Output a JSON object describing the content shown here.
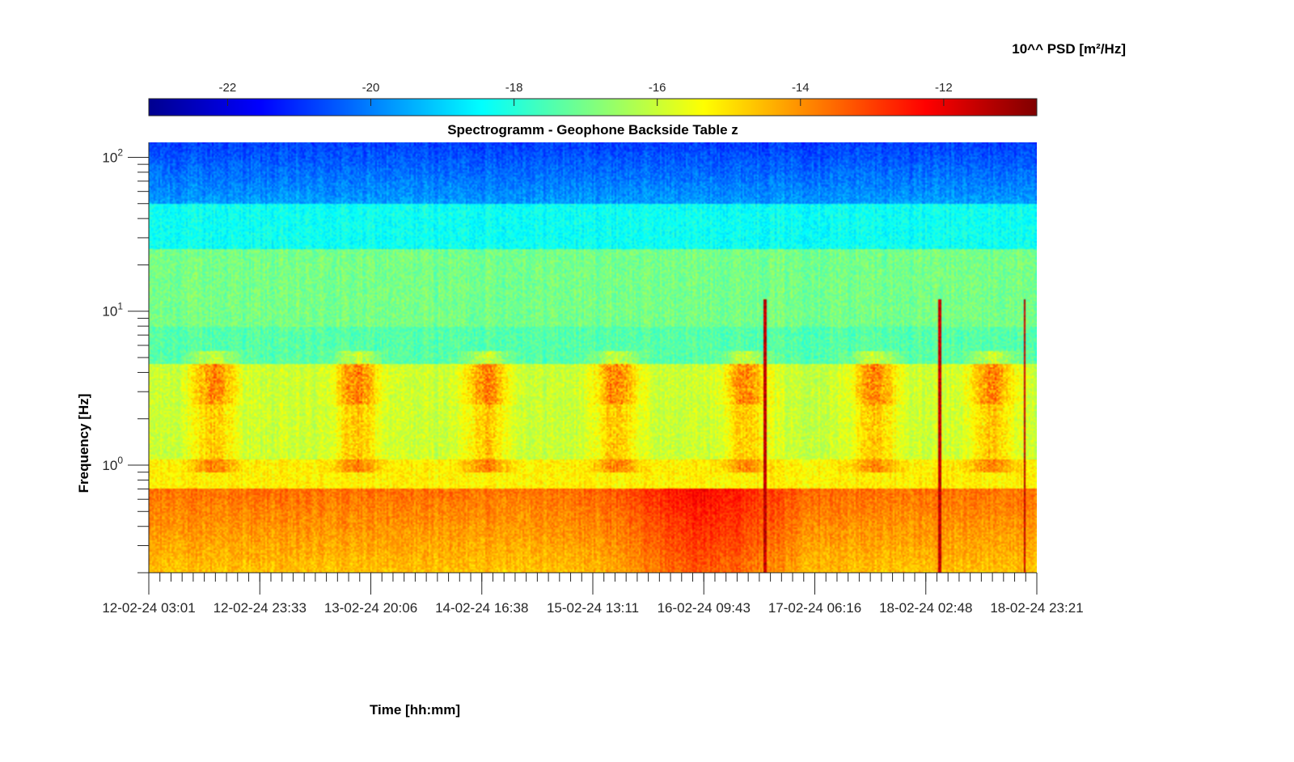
{
  "chart_data": {
    "type": "heatmap",
    "title": "Spectrogramm - Geophone Backside Table z",
    "xlabel": "Time [hh:mm]",
    "ylabel": "Frequency [Hz]",
    "y_scale": "log",
    "ylim": [
      0.2,
      125
    ],
    "x_ticks": [
      "12-02-24 03:01",
      "12-02-24 23:33",
      "13-02-24 20:06",
      "14-02-24 16:38",
      "15-02-24 13:11",
      "16-02-24 09:43",
      "17-02-24 06:16",
      "18-02-24 02:48",
      "18-02-24 23:21"
    ],
    "y_ticks": [
      {
        "base": "10",
        "exp": "0",
        "value": 1
      },
      {
        "base": "10",
        "exp": "1",
        "value": 10
      },
      {
        "base": "10",
        "exp": "2",
        "value": 100
      }
    ],
    "colorbar": {
      "label": "10^^ PSD [m²/Hz]",
      "colormap": "jet",
      "range": [
        -23.1,
        -10.7
      ],
      "ticks": [
        -22,
        -20,
        -18,
        -16,
        -14,
        -12
      ],
      "tick_labels": [
        "-22",
        "-20",
        "-18",
        "-16",
        "-14",
        "-12"
      ],
      "position": "top"
    },
    "grid": false,
    "features": [
      {
        "kind": "daytime-activity",
        "band_hz": [
          1,
          5
        ],
        "center_days": [
          0.5,
          1.6,
          2.6,
          3.6,
          4.6,
          5.6,
          6.5
        ],
        "level": -14
      },
      {
        "kind": "low-frequency-background",
        "band_hz": [
          0.2,
          0.7
        ],
        "level": -12.5
      },
      {
        "kind": "transient-spike",
        "days": [
          4.75,
          6.1,
          6.75
        ],
        "level": -11.5
      }
    ]
  }
}
